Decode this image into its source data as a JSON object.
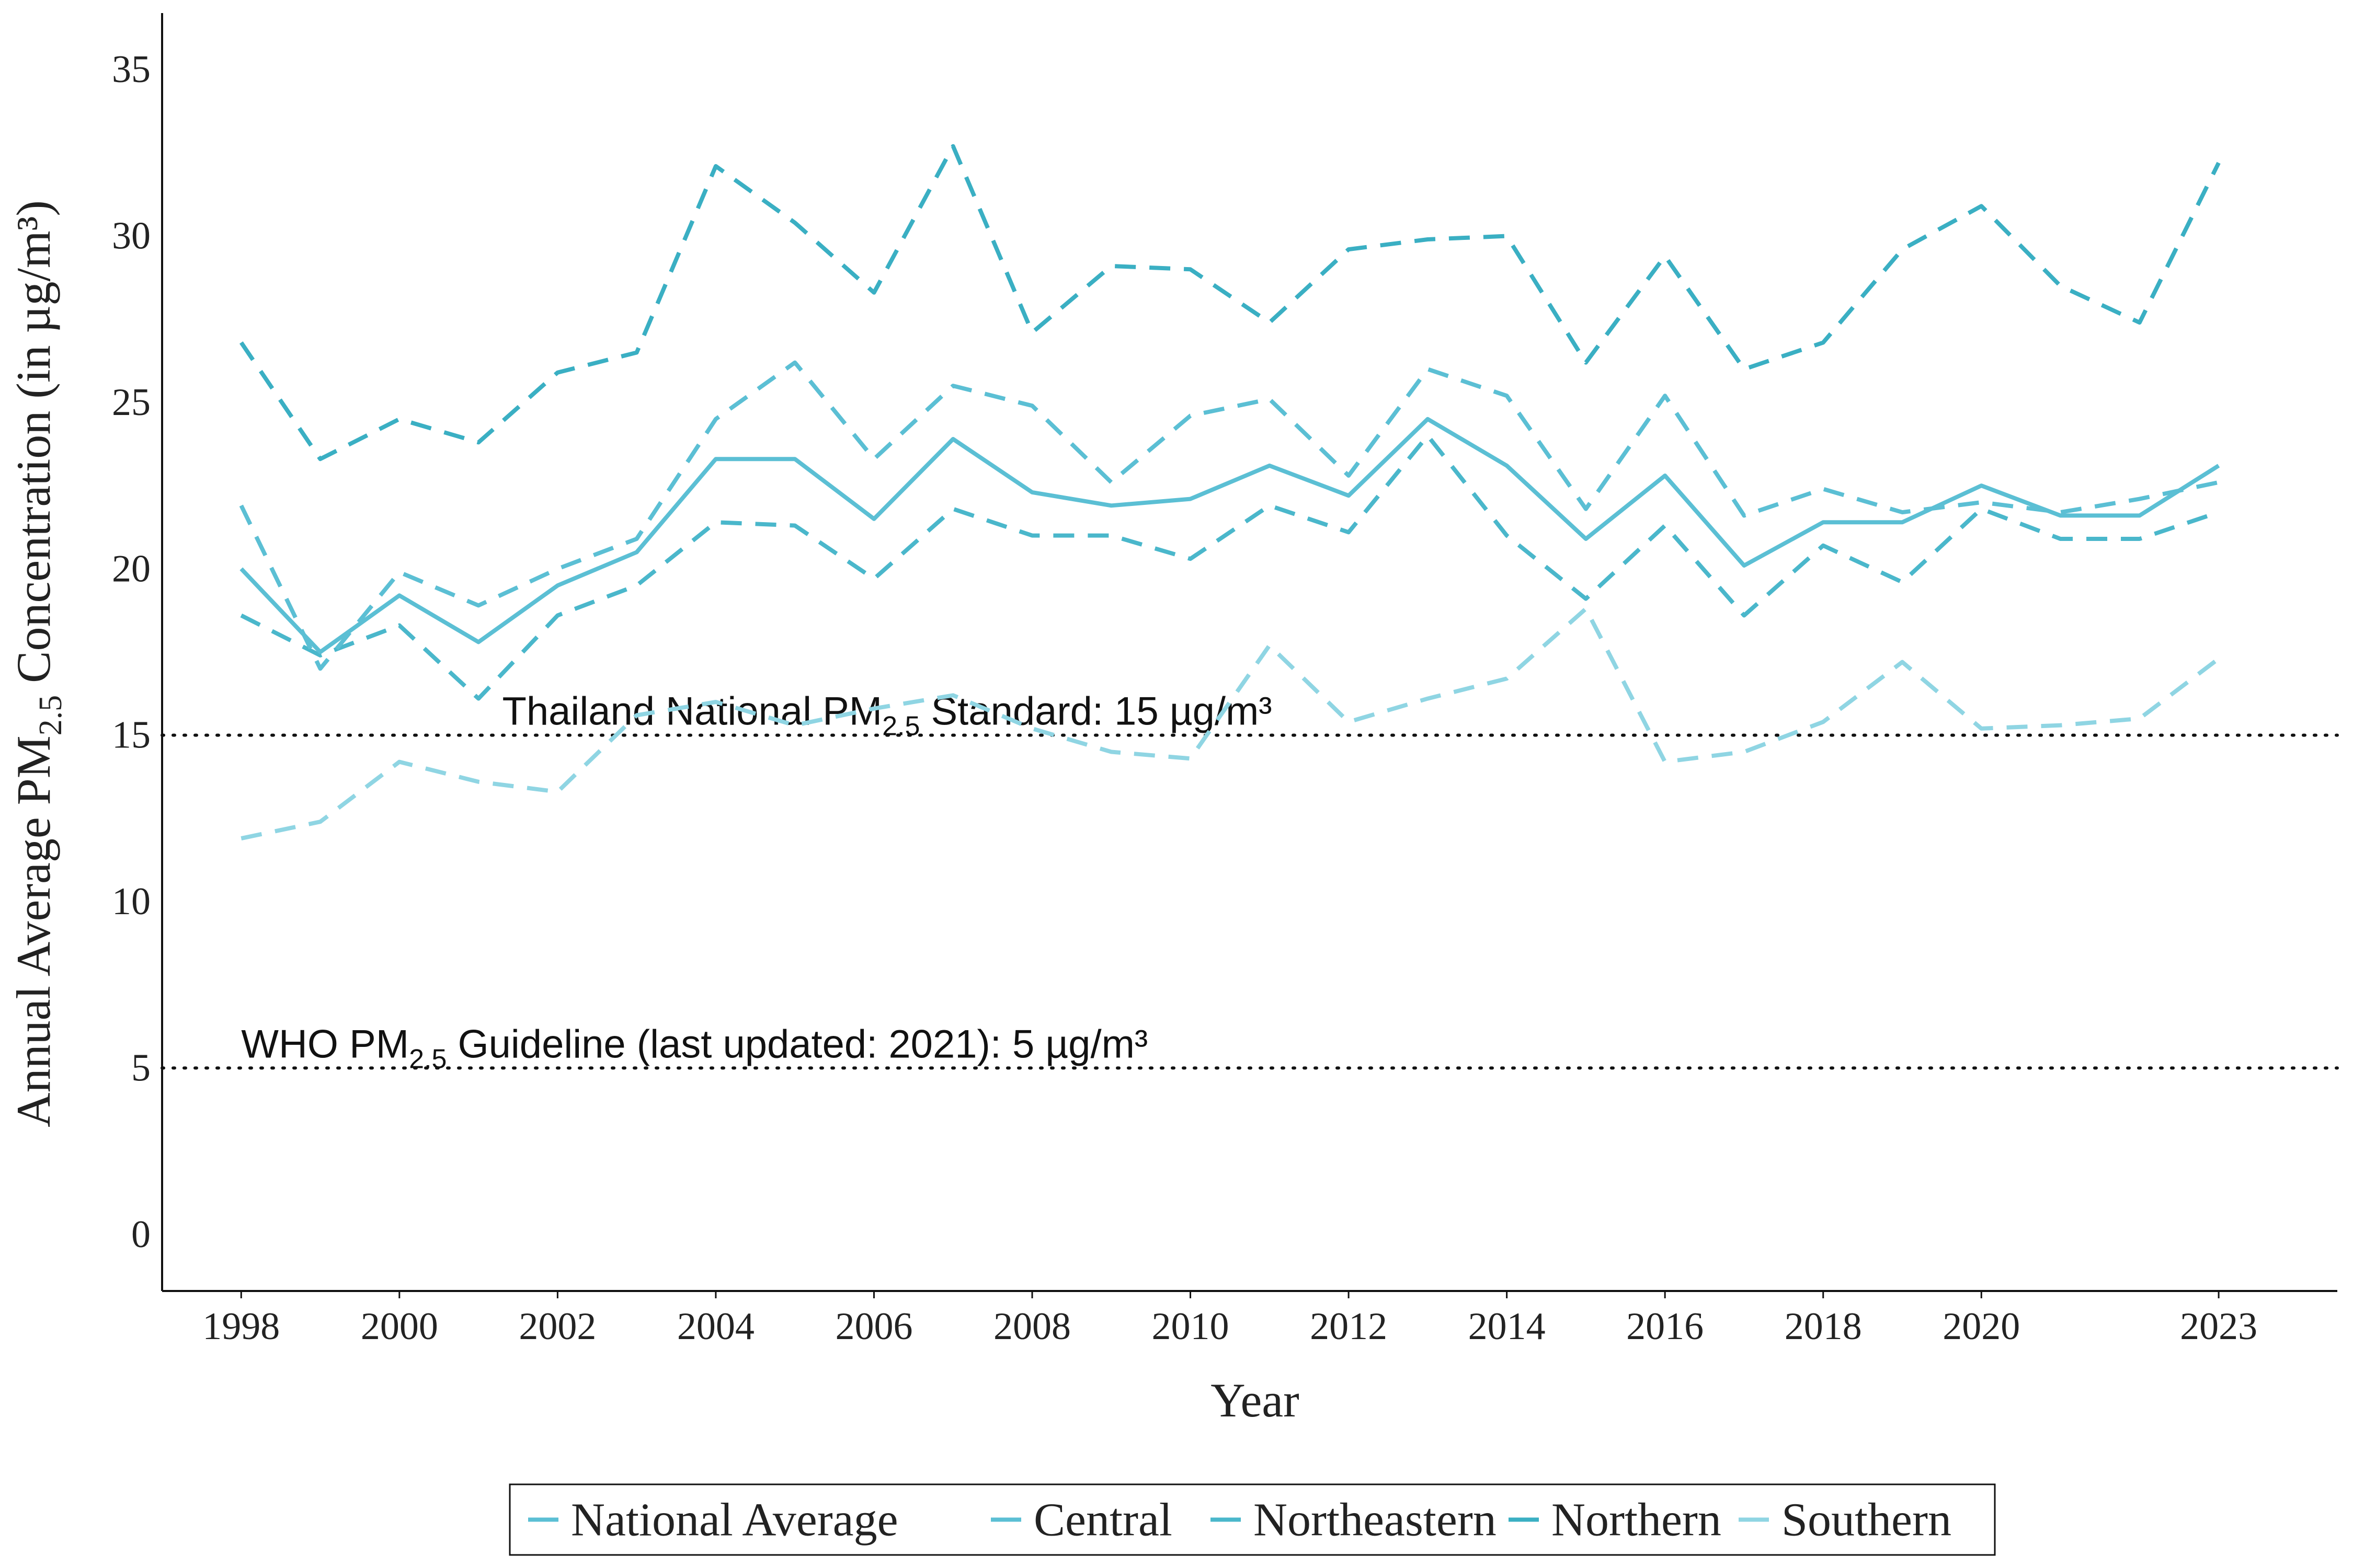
{
  "chart_data": {
    "type": "line",
    "xlabel": "Year",
    "ylabel_parts": {
      "pre": "Annual Average PM",
      "sub": "2.5",
      "post": " Concentration (in µg/m³)"
    },
    "xlim": [
      1997,
      2024.5
    ],
    "ylim": [
      -1.7,
      36.7
    ],
    "x_ticks": [
      1998,
      2000,
      2002,
      2004,
      2006,
      2008,
      2010,
      2012,
      2014,
      2016,
      2018,
      2020,
      2023
    ],
    "y_ticks": [
      0,
      5,
      10,
      15,
      20,
      25,
      30,
      35
    ],
    "grid": false,
    "legend": "bottom",
    "x": [
      1998,
      1999,
      2000,
      2001,
      2002,
      2003,
      2004,
      2005,
      2006,
      2007,
      2008,
      2009,
      2010,
      2011,
      2012,
      2013,
      2014,
      2015,
      2016,
      2017,
      2018,
      2019,
      2020,
      2021,
      2022,
      2023
    ],
    "series": [
      {
        "name": "National Average",
        "style": "solid",
        "color": "#5bbfd4",
        "values": [
          20.0,
          17.5,
          19.2,
          17.8,
          19.5,
          20.5,
          23.3,
          23.3,
          21.5,
          23.9,
          22.3,
          21.9,
          22.1,
          23.1,
          22.2,
          24.5,
          23.1,
          20.9,
          22.8,
          20.1,
          21.4,
          21.4,
          22.5,
          21.6,
          21.6,
          23.1
        ]
      },
      {
        "name": "Central",
        "style": "dashed",
        "color": "#5bbfd4",
        "values": [
          21.9,
          17.0,
          19.9,
          18.9,
          20.0,
          20.9,
          24.5,
          26.2,
          23.3,
          25.5,
          24.9,
          22.6,
          24.6,
          25.1,
          22.8,
          26.0,
          25.2,
          21.8,
          25.2,
          21.6,
          22.4,
          21.7,
          22.0,
          21.7,
          22.1,
          22.6
        ]
      },
      {
        "name": "Northeastern",
        "style": "dashed",
        "color": "#4ab7cb",
        "values": [
          18.6,
          17.4,
          18.3,
          16.1,
          18.6,
          19.5,
          21.4,
          21.3,
          19.7,
          21.8,
          21.0,
          21.0,
          20.3,
          21.9,
          21.1,
          24.0,
          21.0,
          19.1,
          21.3,
          18.6,
          20.7,
          19.6,
          21.8,
          20.9,
          20.9,
          21.7
        ]
      },
      {
        "name": "Northern",
        "style": "dashed",
        "color": "#3aafc3",
        "values": [
          26.8,
          23.3,
          24.5,
          23.8,
          25.9,
          26.5,
          32.1,
          30.4,
          28.3,
          32.7,
          27.1,
          29.1,
          29.0,
          27.4,
          29.6,
          29.9,
          30.0,
          26.2,
          29.4,
          26.0,
          26.8,
          29.6,
          30.9,
          28.5,
          27.4,
          32.2
        ]
      },
      {
        "name": "Southern",
        "style": "dashed",
        "color": "#8fd5e3",
        "values": [
          11.9,
          12.4,
          14.2,
          13.6,
          13.3,
          15.6,
          16.0,
          15.3,
          15.8,
          16.2,
          15.2,
          14.5,
          14.3,
          17.7,
          15.4,
          16.1,
          16.7,
          18.8,
          14.2,
          14.5,
          15.4,
          17.2,
          15.2,
          15.3,
          15.5,
          17.3
        ]
      }
    ],
    "reference_lines": [
      {
        "y": 15,
        "label_pre": "Thailand National PM",
        "label_sub": "2.5",
        "label_post": " Standard: 15 µg/m³",
        "label_x": 2001.3
      },
      {
        "y": 5,
        "label_pre": "WHO PM",
        "label_sub": "2.5",
        "label_post": " Guideline (last updated: 2021): 5 µg/m³",
        "label_x": 1998
      }
    ]
  }
}
